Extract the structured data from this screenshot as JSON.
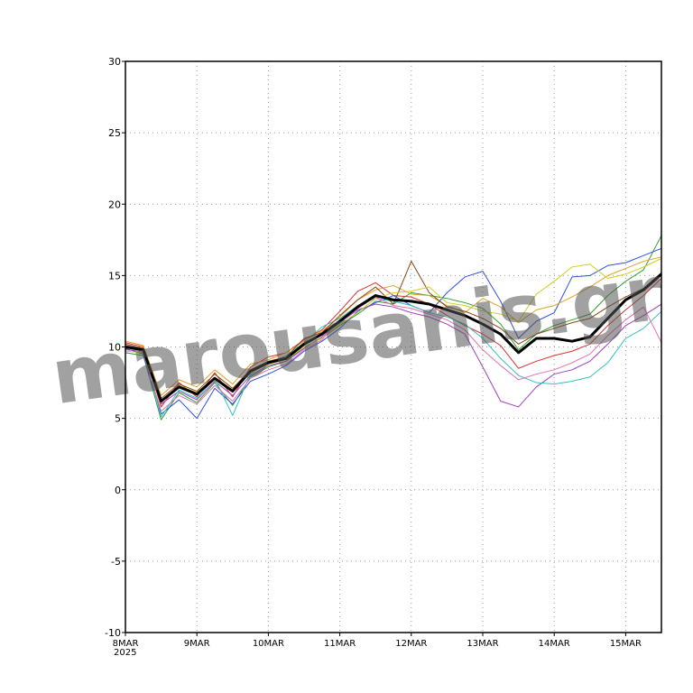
{
  "chart_data": {
    "type": "line",
    "x_year_label": "2025",
    "watermark": "marousanis.gr",
    "grid": true,
    "xlim": [
      0,
      7.5
    ],
    "ylim": [
      -10,
      30
    ],
    "yticks": [
      -10,
      -5,
      0,
      5,
      10,
      15,
      20,
      25,
      30
    ],
    "xticks": [
      {
        "value": 0,
        "label": "8MAR"
      },
      {
        "value": 1,
        "label": "9MAR"
      },
      {
        "value": 2,
        "label": "10MAR"
      },
      {
        "value": 3,
        "label": "11MAR"
      },
      {
        "value": 4,
        "label": "12MAR"
      },
      {
        "value": 5,
        "label": "13MAR"
      },
      {
        "value": 6,
        "label": "14MAR"
      },
      {
        "value": 7,
        "label": "15MAR"
      }
    ],
    "x": [
      0,
      0.25,
      0.5,
      0.75,
      1,
      1.25,
      1.5,
      1.75,
      2,
      2.25,
      2.5,
      2.75,
      3,
      3.25,
      3.5,
      3.75,
      4,
      4.25,
      4.5,
      4.75,
      5,
      5.25,
      5.5,
      5.75,
      6,
      6.25,
      6.5,
      6.75,
      7,
      7.25,
      7.5
    ],
    "series": [
      {
        "color": "#e03030",
        "width": 1,
        "values": [
          10.3,
          10.0,
          5.8,
          7.5,
          6.5,
          8.2,
          6.5,
          8.6,
          9.3,
          9.6,
          10.5,
          11.2,
          12.5,
          13.9,
          14.5,
          13.6,
          13.5,
          13.0,
          12.2,
          11.5,
          10.9,
          10.1,
          8.5,
          9.0,
          9.4,
          9.7,
          10.2,
          11.5,
          12.6,
          13.6,
          14.8
        ]
      },
      {
        "color": "#30a030",
        "width": 1,
        "values": [
          9.6,
          9.4,
          4.9,
          6.8,
          6.1,
          7.5,
          5.9,
          7.9,
          8.6,
          9.0,
          10.0,
          10.6,
          11.5,
          12.3,
          13.2,
          13.0,
          13.8,
          13.6,
          13.4,
          13.1,
          12.7,
          11.6,
          9.8,
          10.9,
          11.5,
          11.9,
          12.3,
          13.6,
          14.6,
          15.4,
          17.8
        ]
      },
      {
        "color": "#3050e0",
        "width": 1,
        "values": [
          9.9,
          9.5,
          5.3,
          6.3,
          5.0,
          7.1,
          6.0,
          7.6,
          8.1,
          8.7,
          9.7,
          10.4,
          11.3,
          12.5,
          13.1,
          13.6,
          12.9,
          12.4,
          13.8,
          14.9,
          15.3,
          13.2,
          10.6,
          11.8,
          12.4,
          14.9,
          15.0,
          15.7,
          15.9,
          16.4,
          16.9
        ]
      },
      {
        "color": "#e0a020",
        "width": 1,
        "values": [
          10.4,
          10.1,
          6.6,
          7.7,
          7.2,
          8.4,
          7.4,
          8.8,
          9.1,
          9.6,
          10.4,
          11.1,
          12.1,
          13.3,
          14.0,
          14.3,
          13.7,
          13.6,
          12.9,
          12.4,
          13.4,
          12.8,
          11.7,
          12.6,
          12.9,
          13.5,
          14.2,
          15.0,
          15.5,
          16.0,
          16.3
        ]
      },
      {
        "color": "#a040c0",
        "width": 1,
        "values": [
          9.8,
          9.7,
          6.0,
          6.9,
          6.3,
          7.6,
          6.6,
          8.0,
          8.7,
          9.0,
          9.9,
          10.7,
          11.7,
          12.6,
          13.0,
          12.8,
          12.4,
          12.1,
          11.6,
          10.9,
          8.6,
          6.2,
          5.8,
          7.2,
          8.1,
          8.4,
          9.0,
          10.2,
          11.5,
          12.2,
          13.0
        ]
      },
      {
        "color": "#30c0c0",
        "width": 1,
        "values": [
          10.1,
          9.9,
          5.1,
          7.0,
          6.4,
          7.8,
          5.2,
          8.1,
          8.9,
          9.4,
          10.3,
          11.4,
          12.0,
          12.9,
          13.4,
          13.2,
          12.9,
          12.4,
          12.1,
          11.6,
          10.6,
          9.2,
          8.0,
          7.5,
          7.4,
          7.6,
          7.9,
          8.9,
          10.6,
          11.3,
          12.5
        ]
      },
      {
        "color": "#8b4513",
        "width": 1,
        "values": [
          10.2,
          9.9,
          6.4,
          7.4,
          6.9,
          8.1,
          7.1,
          8.4,
          9.0,
          9.3,
          10.6,
          11.0,
          12.2,
          13.3,
          14.2,
          13.0,
          16.0,
          13.8,
          12.8,
          12.5,
          12.0,
          11.3,
          10.2,
          10.9,
          11.3,
          11.7,
          12.0,
          12.8,
          13.5,
          14.1,
          15.2
        ]
      },
      {
        "color": "#d0d020",
        "width": 1,
        "values": [
          9.7,
          9.6,
          6.1,
          7.3,
          6.8,
          7.9,
          7.0,
          8.2,
          8.8,
          9.1,
          10.0,
          10.6,
          11.6,
          12.4,
          13.4,
          13.8,
          13.9,
          14.2,
          13.1,
          12.9,
          12.5,
          12.3,
          11.8,
          13.7,
          14.6,
          15.6,
          15.8,
          14.8,
          15.1,
          15.6,
          16.2
        ]
      },
      {
        "color": "#e070b0",
        "width": 1,
        "values": [
          10.0,
          9.6,
          5.5,
          6.6,
          6.0,
          7.3,
          6.2,
          7.8,
          8.4,
          8.8,
          9.8,
          10.5,
          11.9,
          12.7,
          13.5,
          12.9,
          12.7,
          12.3,
          11.9,
          11.2,
          9.8,
          8.7,
          7.7,
          8.1,
          8.4,
          8.9,
          9.5,
          10.8,
          11.9,
          12.8,
          10.3
        ]
      },
      {
        "color": "#000000",
        "width": 3,
        "values": [
          10.0,
          9.8,
          6.2,
          7.2,
          6.7,
          7.8,
          6.9,
          8.3,
          8.9,
          9.2,
          10.2,
          10.9,
          11.8,
          12.8,
          13.6,
          13.3,
          13.2,
          13.0,
          12.6,
          12.2,
          11.6,
          10.9,
          9.6,
          10.6,
          10.6,
          10.4,
          10.7,
          12.0,
          13.3,
          14.0,
          15.1
        ]
      }
    ]
  }
}
